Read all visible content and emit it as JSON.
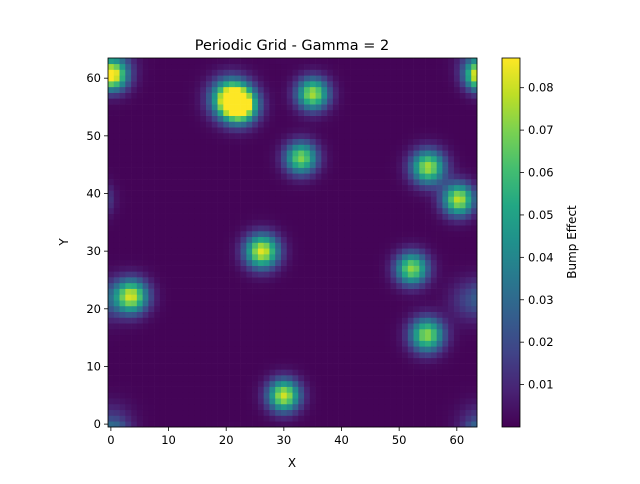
{
  "chart_data": {
    "type": "heatmap",
    "title": "Periodic Grid - Gamma = 2",
    "xlabel": "X",
    "ylabel": "Y",
    "grid_size": 64,
    "xlim": [
      -0.5,
      63.5
    ],
    "ylim": [
      -0.5,
      63.5
    ],
    "x_ticks": [
      0,
      10,
      20,
      30,
      40,
      50,
      60
    ],
    "y_ticks": [
      0,
      10,
      20,
      30,
      40,
      50,
      60
    ],
    "x_tick_labels": [
      "0",
      "10",
      "20",
      "30",
      "40",
      "50",
      "60"
    ],
    "y_tick_labels": [
      "0",
      "10",
      "20",
      "30",
      "40",
      "50",
      "60"
    ],
    "colormap": "viridis",
    "periodic": true,
    "value_range": [
      0.0,
      0.087
    ],
    "colorbar": {
      "label": "Bump Effect",
      "ticks": [
        0.01,
        0.02,
        0.03,
        0.04,
        0.05,
        0.06,
        0.07,
        0.08
      ],
      "tick_labels": [
        "0.01",
        "0.02",
        "0.03",
        "0.04",
        "0.05",
        "0.06",
        "0.07",
        "0.08"
      ]
    },
    "bumps": [
      {
        "x": 0.5,
        "y": 60.5,
        "peak": 0.058,
        "width": 1.9
      },
      {
        "x": 63.5,
        "y": 60.5,
        "peak": 0.035,
        "width": 1.6
      },
      {
        "x": 20.8,
        "y": 56.5,
        "peak": 0.087,
        "width": 2.3
      },
      {
        "x": 22.5,
        "y": 55.2,
        "peak": 0.08,
        "width": 2.0
      },
      {
        "x": 35,
        "y": 57.3,
        "peak": 0.075,
        "width": 1.9
      },
      {
        "x": 33,
        "y": 46.2,
        "peak": 0.07,
        "width": 1.9
      },
      {
        "x": 55,
        "y": 44.6,
        "peak": 0.075,
        "width": 2.0
      },
      {
        "x": 60.3,
        "y": 39,
        "peak": 0.078,
        "width": 1.9
      },
      {
        "x": 26.2,
        "y": 30,
        "peak": 0.083,
        "width": 2.0
      },
      {
        "x": 52.2,
        "y": 27,
        "peak": 0.072,
        "width": 1.9
      },
      {
        "x": 3.5,
        "y": 22.2,
        "peak": 0.08,
        "width": 2.0
      },
      {
        "x": 54.8,
        "y": 15.5,
        "peak": 0.072,
        "width": 2.0
      },
      {
        "x": 30,
        "y": 5,
        "peak": 0.08,
        "width": 1.9
      },
      {
        "x": 62.5,
        "y": 21.5,
        "peak": 0.018,
        "width": 2.5
      },
      {
        "x": 0,
        "y": 0,
        "peak": 0.016,
        "width": 2.5
      }
    ]
  }
}
